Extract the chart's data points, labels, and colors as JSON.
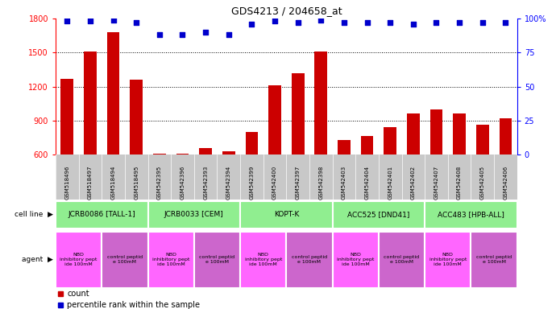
{
  "title": "GDS4213 / 204658_at",
  "samples": [
    "GSM518496",
    "GSM518497",
    "GSM518494",
    "GSM518495",
    "GSM542395",
    "GSM542396",
    "GSM542393",
    "GSM542394",
    "GSM542399",
    "GSM542400",
    "GSM542397",
    "GSM542398",
    "GSM542403",
    "GSM542404",
    "GSM542401",
    "GSM542402",
    "GSM542407",
    "GSM542408",
    "GSM542405",
    "GSM542406"
  ],
  "counts": [
    1270,
    1510,
    1680,
    1260,
    610,
    610,
    660,
    630,
    800,
    1210,
    1320,
    1510,
    730,
    760,
    840,
    960,
    1000,
    960,
    860,
    920
  ],
  "percentile": [
    98,
    98,
    99,
    97,
    88,
    88,
    90,
    88,
    96,
    98,
    97,
    99,
    97,
    97,
    97,
    96,
    97,
    97,
    97,
    97
  ],
  "cell_lines": [
    {
      "label": "JCRB0086 [TALL-1]",
      "start": 0,
      "end": 4
    },
    {
      "label": "JCRB0033 [CEM]",
      "start": 4,
      "end": 8
    },
    {
      "label": "KOPT-K",
      "start": 8,
      "end": 12
    },
    {
      "label": "ACC525 [DND41]",
      "start": 12,
      "end": 16
    },
    {
      "label": "ACC483 [HPB-ALL]",
      "start": 16,
      "end": 20
    }
  ],
  "agents": [
    {
      "label": "NBD\ninhibitory pept\nide 100mM",
      "start": 0,
      "end": 2
    },
    {
      "label": "control peptid\ne 100mM",
      "start": 2,
      "end": 4
    },
    {
      "label": "NBD\ninhibitory pept\nide 100mM",
      "start": 4,
      "end": 6
    },
    {
      "label": "control peptid\ne 100mM",
      "start": 6,
      "end": 8
    },
    {
      "label": "NBD\ninhibitory pept\nide 100mM",
      "start": 8,
      "end": 10
    },
    {
      "label": "control peptid\ne 100mM",
      "start": 10,
      "end": 12
    },
    {
      "label": "NBD\ninhibitory pept\nide 100mM",
      "start": 12,
      "end": 14
    },
    {
      "label": "control peptid\ne 100mM",
      "start": 14,
      "end": 16
    },
    {
      "label": "NBD\ninhibitory pept\nide 100mM",
      "start": 16,
      "end": 18
    },
    {
      "label": "control peptid\ne 100mM",
      "start": 18,
      "end": 20
    }
  ],
  "ylim_left": [
    600,
    1800
  ],
  "ylim_right": [
    0,
    100
  ],
  "yticks_left": [
    600,
    900,
    1200,
    1500,
    1800
  ],
  "yticks_right": [
    0,
    25,
    50,
    75,
    100
  ],
  "bar_color": "#CC0000",
  "dot_color": "#0000CC",
  "plot_bg": "#FFFFFF",
  "cell_line_color": "#90EE90",
  "agent_color_nbd": "#FF66FF",
  "agent_color_ctrl": "#CC66CC",
  "tick_area_bg": "#C8C8C8",
  "legend_count_color": "#CC0000",
  "legend_dot_color": "#0000CC"
}
